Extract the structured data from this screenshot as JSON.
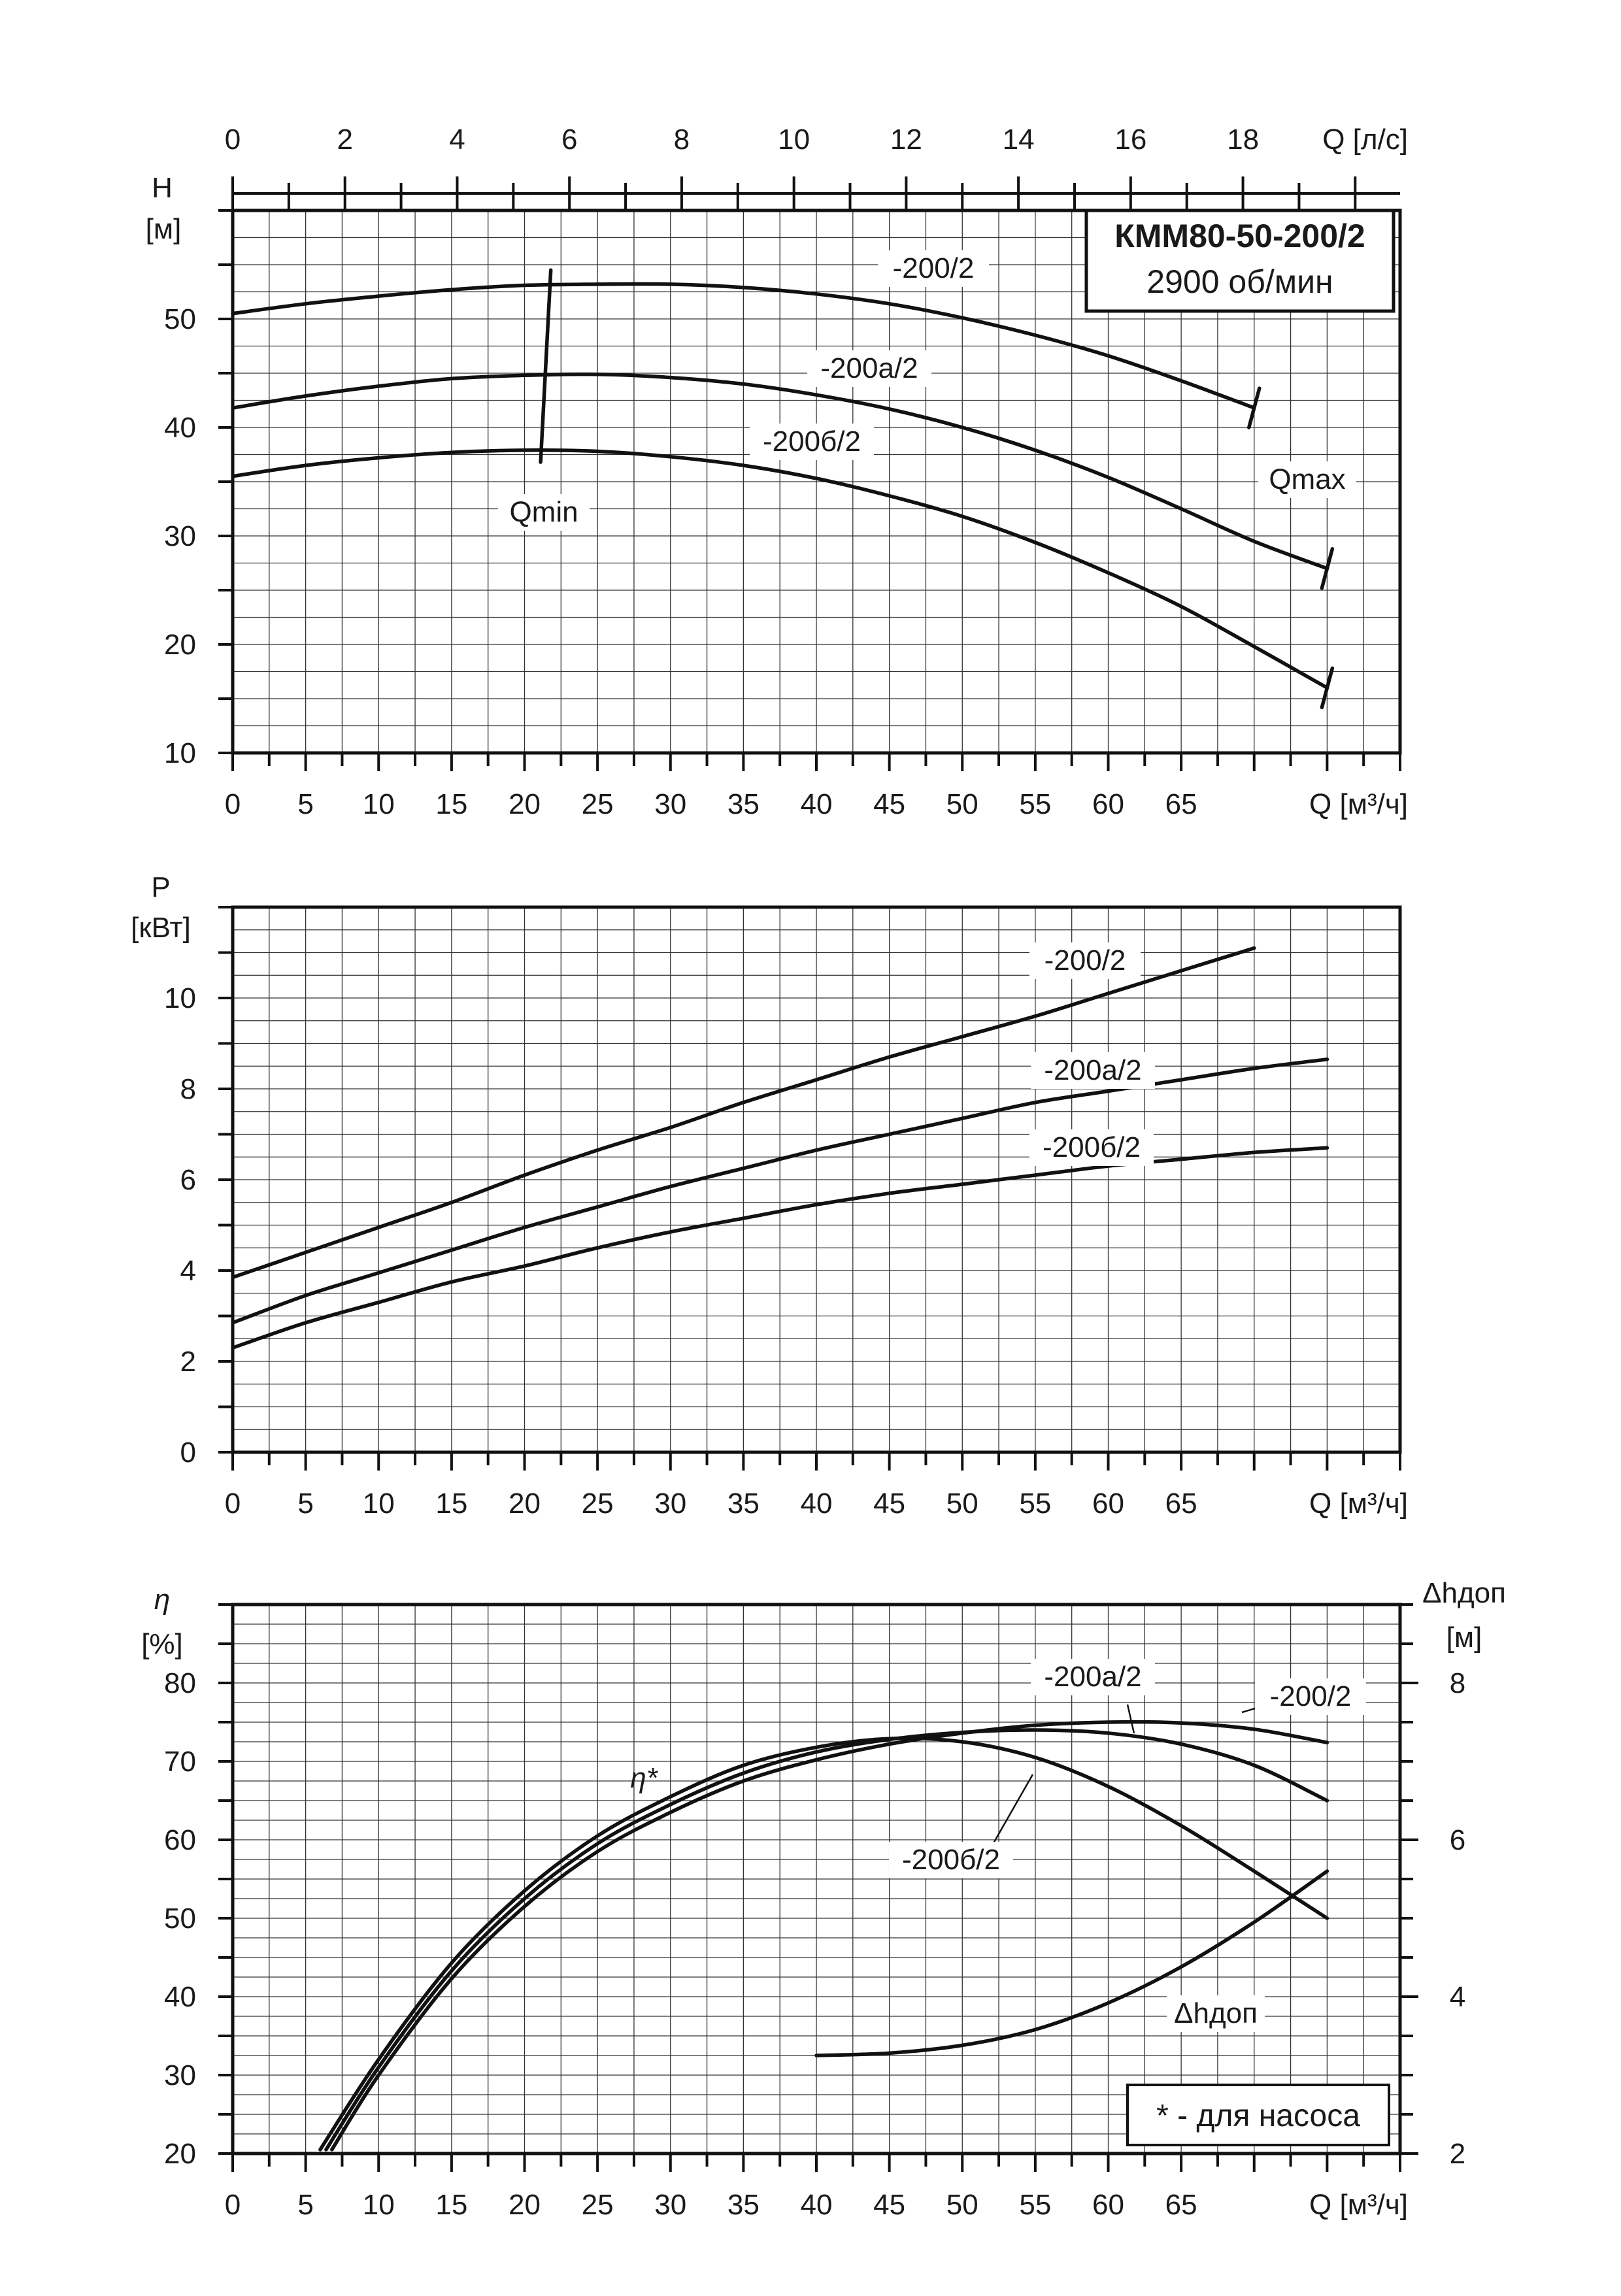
{
  "model_box": {
    "model": "КММ80-50-200/2",
    "speed": "2900 об/мин"
  },
  "footnote": "* - для насоса",
  "chart_data": [
    {
      "id": "head",
      "type": "line",
      "title": "",
      "top_axis": {
        "label": "Q [л/с]",
        "range": [
          0,
          20.8
        ],
        "ticks": [
          "0",
          "2",
          "4",
          "6",
          "8",
          "10",
          "12",
          "14",
          "16",
          "18"
        ],
        "tick_values": [
          0,
          2,
          4,
          6,
          8,
          10,
          12,
          14,
          16,
          18
        ]
      },
      "xlabel": "Q [м³/ч]",
      "ylabel_symbol": "H",
      "ylabel_unit": "[м]",
      "xlim": [
        0,
        80
      ],
      "ylim": [
        10,
        60
      ],
      "xticks": [
        "0",
        "5",
        "10",
        "15",
        "20",
        "25",
        "30",
        "35",
        "40",
        "45",
        "50",
        "55",
        "60",
        "65"
      ],
      "xtick_values": [
        0,
        5,
        10,
        15,
        20,
        25,
        30,
        35,
        40,
        45,
        50,
        55,
        60,
        65
      ],
      "yticks": [
        "10",
        "20",
        "30",
        "40",
        "50"
      ],
      "ytick_values": [
        10,
        20,
        30,
        40,
        50
      ],
      "grid": true,
      "series": [
        {
          "name": "-200/2",
          "x": [
            0,
            5,
            10,
            15,
            20,
            25,
            30,
            35,
            40,
            45,
            50,
            55,
            60,
            65,
            70
          ],
          "y": [
            50.5,
            51.4,
            52.1,
            52.7,
            53.1,
            53.2,
            53.2,
            52.9,
            52.3,
            51.4,
            50.1,
            48.5,
            46.6,
            44.3,
            41.8
          ],
          "qmax": 70
        },
        {
          "name": "-200а/2",
          "x": [
            0,
            5,
            10,
            15,
            20,
            25,
            30,
            35,
            40,
            45,
            50,
            55,
            60,
            65,
            70,
            75
          ],
          "y": [
            41.8,
            42.9,
            43.8,
            44.5,
            44.8,
            44.9,
            44.6,
            44.0,
            43.0,
            41.7,
            40.0,
            37.9,
            35.4,
            32.5,
            29.5,
            27.0
          ],
          "qmax": 75
        },
        {
          "name": "-200б/2",
          "x": [
            0,
            5,
            10,
            15,
            20,
            25,
            30,
            35,
            40,
            45,
            50,
            55,
            60,
            65,
            70,
            75
          ],
          "y": [
            35.5,
            36.5,
            37.2,
            37.7,
            37.9,
            37.8,
            37.3,
            36.5,
            35.3,
            33.7,
            31.8,
            29.4,
            26.6,
            23.5,
            19.8,
            16.0
          ],
          "qmax": 75
        }
      ],
      "qmin": {
        "label": "Qmin",
        "from": [
          21.1,
          36.8
        ],
        "to": [
          21.8,
          54.5
        ]
      },
      "qmax_label": "Qmax"
    },
    {
      "id": "power",
      "type": "line",
      "title": "",
      "xlabel": "Q [м³/ч]",
      "ylabel_symbol": "P",
      "ylabel_unit": "[кВт]",
      "xlim": [
        0,
        80
      ],
      "ylim": [
        0,
        12
      ],
      "xticks": [
        "0",
        "5",
        "10",
        "15",
        "20",
        "25",
        "30",
        "35",
        "40",
        "45",
        "50",
        "55",
        "60",
        "65"
      ],
      "xtick_values": [
        0,
        5,
        10,
        15,
        20,
        25,
        30,
        35,
        40,
        45,
        50,
        55,
        60,
        65
      ],
      "yticks": [
        "0",
        "2",
        "4",
        "6",
        "8",
        "10"
      ],
      "ytick_values": [
        0,
        2,
        4,
        6,
        8,
        10
      ],
      "grid": true,
      "series": [
        {
          "name": "-200/2",
          "x": [
            0,
            5,
            10,
            15,
            20,
            25,
            30,
            35,
            40,
            45,
            50,
            55,
            60,
            65,
            70
          ],
          "y": [
            3.85,
            4.4,
            4.95,
            5.5,
            6.1,
            6.65,
            7.15,
            7.7,
            8.2,
            8.7,
            9.15,
            9.6,
            10.1,
            10.6,
            11.1
          ]
        },
        {
          "name": "-200а/2",
          "x": [
            0,
            5,
            10,
            15,
            20,
            25,
            30,
            35,
            40,
            45,
            50,
            55,
            60,
            65,
            70,
            75
          ],
          "y": [
            2.85,
            3.45,
            3.95,
            4.45,
            4.95,
            5.4,
            5.85,
            6.25,
            6.65,
            7.0,
            7.35,
            7.7,
            7.95,
            8.2,
            8.45,
            8.65
          ]
        },
        {
          "name": "-200б/2",
          "x": [
            0,
            5,
            10,
            15,
            20,
            25,
            30,
            35,
            40,
            45,
            50,
            55,
            60,
            65,
            70,
            75
          ],
          "y": [
            2.3,
            2.85,
            3.3,
            3.75,
            4.1,
            4.5,
            4.85,
            5.15,
            5.45,
            5.7,
            5.9,
            6.1,
            6.3,
            6.45,
            6.6,
            6.7
          ]
        }
      ]
    },
    {
      "id": "efficiency",
      "type": "line",
      "title": "",
      "xlabel": "Q [м³/ч]",
      "ylabel_symbol": "η",
      "ylabel_unit": "[%]",
      "y2label_symbol": "Δhдоп",
      "y2label_unit": "[м]",
      "xlim": [
        0,
        80
      ],
      "ylim": [
        20,
        90
      ],
      "y2lim": [
        2,
        9
      ],
      "xticks": [
        "0",
        "5",
        "10",
        "15",
        "20",
        "25",
        "30",
        "35",
        "40",
        "45",
        "50",
        "55",
        "60",
        "65"
      ],
      "xtick_values": [
        0,
        5,
        10,
        15,
        20,
        25,
        30,
        35,
        40,
        45,
        50,
        55,
        60,
        65
      ],
      "yticks": [
        "20",
        "30",
        "40",
        "50",
        "60",
        "70",
        "80"
      ],
      "ytick_values": [
        20,
        30,
        40,
        50,
        60,
        70,
        80
      ],
      "y2ticks": [
        "2",
        "4",
        "6",
        "8"
      ],
      "y2tick_values": [
        2,
        4,
        6,
        8
      ],
      "grid": true,
      "eta_label": "η*",
      "series": [
        {
          "name": "-200/2",
          "x": [
            6.8,
            10,
            15,
            20,
            25,
            30,
            35,
            40,
            45,
            50,
            55,
            60,
            65,
            70,
            75
          ],
          "y": [
            20.5,
            30,
            42.3,
            51.5,
            58.5,
            63.5,
            67.5,
            70.2,
            72.2,
            73.6,
            74.6,
            75.0,
            74.9,
            74.1,
            72.4
          ]
        },
        {
          "name": "-200а/2",
          "x": [
            6.4,
            10,
            15,
            20,
            25,
            30,
            35,
            40,
            45,
            50,
            55,
            60,
            65,
            70,
            75
          ],
          "y": [
            20.5,
            31,
            43.3,
            52.5,
            59.5,
            64.5,
            68.5,
            71.2,
            72.8,
            73.7,
            74.0,
            73.6,
            72.2,
            69.5,
            65.0
          ]
        },
        {
          "name": "-200б/2",
          "x": [
            6.0,
            10,
            15,
            20,
            25,
            30,
            35,
            40,
            45,
            50,
            55,
            60,
            65,
            70,
            75
          ],
          "y": [
            20.5,
            32,
            44.3,
            53.5,
            60.5,
            65.5,
            69.5,
            71.8,
            72.9,
            72.5,
            70.5,
            66.8,
            61.8,
            56.0,
            50.0
          ]
        },
        {
          "name": "Δhдоп",
          "axis": "y2",
          "x": [
            40,
            45,
            50,
            55,
            60,
            65,
            70,
            75
          ],
          "y": [
            3.25,
            3.28,
            3.38,
            3.58,
            3.92,
            4.38,
            4.95,
            5.6
          ]
        }
      ]
    }
  ]
}
